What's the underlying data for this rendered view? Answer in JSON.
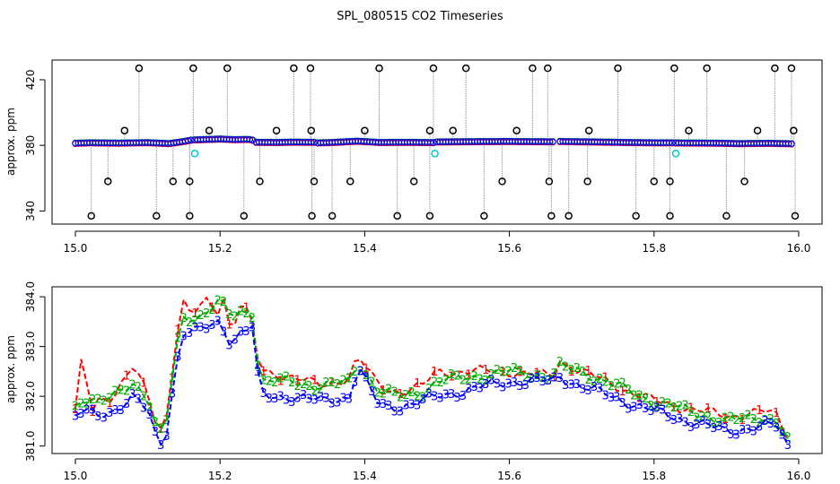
{
  "figure_title": "SPL_080515  CO2 Timeseries",
  "colors": {
    "series1": "#ff0000",
    "series2": "#00aa00",
    "series3": "#0000ff",
    "outlier": "#000000",
    "flag": "#00cccc",
    "vline": "#9a9a9a"
  },
  "chart_data": [
    {
      "type": "scatter",
      "title": "",
      "xlabel": "",
      "ylabel": "approx. ppm",
      "xlim": [
        15.0,
        16.0
      ],
      "ylim": [
        332,
        432
      ],
      "x_ticks": [
        "15.0",
        "15.2",
        "15.4",
        "15.6",
        "15.8",
        "16.0"
      ],
      "y_ticks": [
        "340",
        "380",
        "420"
      ],
      "baseline_segments": [
        {
          "x": [
            15.0,
            15.02,
            15.06,
            15.1,
            15.13,
            15.15,
            15.16
          ],
          "y": [
            381.3,
            381.6,
            381.4,
            381.7,
            381.1,
            382.4,
            383.2
          ]
        },
        {
          "x": [
            15.165,
            15.18,
            15.2,
            15.22,
            15.24,
            15.245
          ],
          "y": [
            383.4,
            383.6,
            383.9,
            383.5,
            383.7,
            383.2
          ]
        },
        {
          "x": [
            15.25,
            15.28,
            15.3,
            15.33
          ],
          "y": [
            381.9,
            381.8,
            382.0,
            381.9
          ]
        },
        {
          "x": [
            15.335,
            15.36,
            15.39,
            15.42,
            15.46,
            15.495
          ],
          "y": [
            381.5,
            381.9,
            382.6,
            381.8,
            381.9,
            381.7
          ]
        },
        {
          "x": [
            15.5,
            15.55,
            15.6,
            15.63,
            15.66
          ],
          "y": [
            382.1,
            382.3,
            382.4,
            382.3,
            382.2
          ]
        },
        {
          "x": [
            15.67,
            15.72,
            15.76,
            15.8,
            15.825
          ],
          "y": [
            382.4,
            382.1,
            381.8,
            381.6,
            381.6
          ]
        },
        {
          "x": [
            15.83,
            15.88,
            15.92,
            15.96,
            15.99
          ],
          "y": [
            381.5,
            381.4,
            381.1,
            381.3,
            381.0
          ]
        }
      ],
      "outliers_high": [
        15.088,
        15.163,
        15.21,
        15.302,
        15.325,
        15.42,
        15.495,
        15.54,
        15.632,
        15.653,
        15.75,
        15.828,
        15.873,
        15.967,
        15.99
      ],
      "outliers_low": [
        15.022,
        15.112,
        15.158,
        15.233,
        15.327,
        15.355,
        15.445,
        15.49,
        15.565,
        15.658,
        15.682,
        15.775,
        15.822,
        15.9,
        15.995
      ],
      "outliers_mid_high": [
        15.068,
        15.185,
        15.278,
        15.326,
        15.4,
        15.49,
        15.522,
        15.61,
        15.71,
        15.848,
        15.943,
        15.993
      ],
      "outliers_mid_low": [
        15.045,
        15.135,
        15.158,
        15.255,
        15.33,
        15.38,
        15.468,
        15.59,
        15.655,
        15.708,
        15.8,
        15.822,
        15.925
      ],
      "outlier_values": {
        "high": 427,
        "low": 337,
        "mid_high": 389,
        "mid_low": 358
      },
      "flagged": [
        {
          "x": 15.165,
          "y": 375
        },
        {
          "x": 15.497,
          "y": 375
        },
        {
          "x": 15.83,
          "y": 375
        }
      ]
    },
    {
      "type": "line",
      "title": "",
      "xlabel": "",
      "ylabel": "approx. ppm",
      "xlim": [
        15.0,
        16.0
      ],
      "ylim": [
        380.85,
        384.2
      ],
      "x_ticks": [
        "15.0",
        "15.2",
        "15.4",
        "15.6",
        "15.8",
        "16.0"
      ],
      "y_ticks": [
        "381.0",
        "382.0",
        "383.0",
        "384.0"
      ],
      "markers": [
        "1",
        "2",
        "3"
      ],
      "series": [
        {
          "marker": "1",
          "x": [
            15.0,
            15.005,
            15.01,
            15.02,
            15.03,
            15.05,
            15.07,
            15.08,
            15.1,
            15.115,
            15.125,
            15.14,
            15.15,
            15.16,
            15.18,
            15.2,
            15.205,
            15.215,
            15.23,
            15.24,
            15.245,
            15.255,
            15.3,
            15.34,
            15.38,
            15.39,
            15.42,
            15.45,
            15.48,
            15.5,
            15.6,
            15.66,
            15.67,
            15.7,
            15.8,
            15.9,
            15.95,
            15.97,
            15.985
          ],
          "y": [
            381.7,
            382.0,
            383.1,
            381.6,
            381.9,
            382.0,
            382.4,
            382.6,
            382.0,
            381.3,
            381.5,
            383.3,
            383.9,
            383.6,
            383.9,
            383.7,
            384.0,
            383.3,
            383.9,
            383.6,
            383.4,
            382.5,
            382.4,
            382.2,
            382.4,
            382.8,
            382.2,
            382.1,
            382.2,
            382.5,
            382.5,
            382.4,
            382.7,
            382.5,
            381.9,
            381.6,
            381.7,
            381.6,
            381.2
          ]
        },
        {
          "marker": "2",
          "x": [
            15.0,
            15.01,
            15.03,
            15.05,
            15.08,
            15.1,
            15.115,
            15.125,
            15.14,
            15.15,
            15.17,
            15.2,
            15.215,
            15.23,
            15.245,
            15.255,
            15.3,
            15.34,
            15.38,
            15.39,
            15.42,
            15.45,
            15.48,
            15.5,
            15.6,
            15.66,
            15.67,
            15.7,
            15.8,
            15.9,
            15.95,
            15.97,
            15.985
          ],
          "y": [
            381.8,
            382.0,
            381.9,
            381.95,
            382.3,
            382.0,
            381.2,
            381.4,
            383.0,
            383.6,
            383.6,
            383.9,
            383.6,
            383.7,
            383.7,
            382.3,
            382.3,
            382.2,
            382.3,
            382.7,
            382.1,
            382.0,
            382.1,
            382.3,
            382.5,
            382.4,
            382.6,
            382.5,
            381.9,
            381.5,
            381.6,
            381.5,
            381.1
          ]
        },
        {
          "marker": "3",
          "x": [
            15.0,
            15.01,
            15.03,
            15.05,
            15.08,
            15.1,
            15.115,
            15.125,
            15.14,
            15.15,
            15.17,
            15.2,
            15.215,
            15.23,
            15.245,
            15.255,
            15.3,
            15.34,
            15.38,
            15.39,
            15.42,
            15.45,
            15.48,
            15.5,
            15.6,
            15.66,
            15.67,
            15.7,
            15.8,
            15.9,
            15.95,
            15.97,
            15.985
          ],
          "y": [
            381.6,
            381.7,
            381.6,
            381.7,
            382.0,
            381.7,
            381.0,
            381.2,
            382.7,
            383.3,
            383.3,
            383.5,
            383.1,
            383.3,
            383.4,
            382.0,
            382.0,
            381.9,
            382.0,
            382.6,
            381.8,
            381.8,
            381.9,
            382.0,
            382.3,
            382.3,
            382.4,
            382.2,
            381.7,
            381.3,
            381.4,
            381.4,
            381.0
          ]
        }
      ]
    }
  ]
}
